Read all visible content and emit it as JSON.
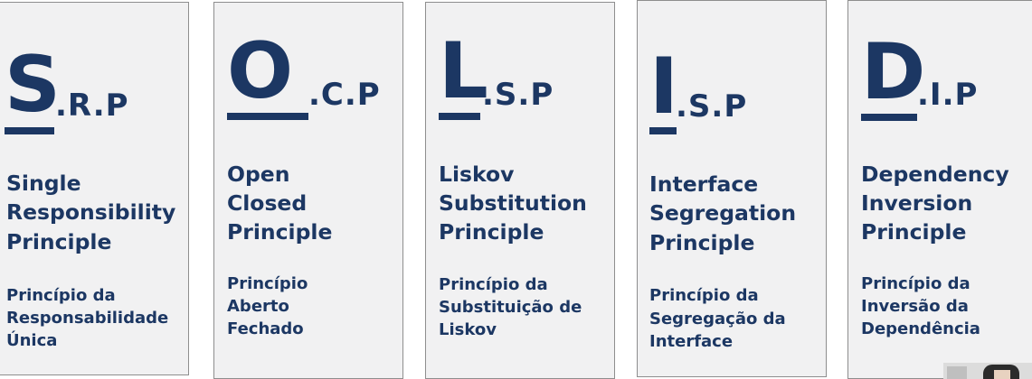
{
  "cards": [
    {
      "letter": "S",
      "rest": ".R.P",
      "name": [
        "Single",
        "Responsibility",
        "Principle"
      ],
      "pt": [
        "Princípio da",
        "Responsabilidade",
        "Única"
      ]
    },
    {
      "letter": "O",
      "rest": ".C.P",
      "name": [
        "Open",
        "Closed",
        "Principle"
      ],
      "pt": [
        "Princípio",
        "Aberto",
        "Fechado"
      ]
    },
    {
      "letter": "L",
      "rest": ".S.P",
      "name": [
        "Liskov",
        "Substitution",
        "Principle"
      ],
      "pt": [
        "Princípio da",
        "Substituição de",
        "Liskov"
      ]
    },
    {
      "letter": "I",
      "rest": ".S.P",
      "name": [
        "Interface",
        "Segregation",
        "Principle"
      ],
      "pt": [
        "Princípio da",
        "Segregação da",
        "Interface"
      ]
    },
    {
      "letter": "D",
      "rest": ".I.P",
      "name": [
        "Dependency",
        "Inversion",
        "Principle"
      ],
      "pt": [
        "Princípio da",
        "Inversão da",
        "Dependência"
      ]
    }
  ],
  "colors": {
    "text": "#1c3763",
    "card": "#f1f1f2",
    "border": "#8e8e8e"
  }
}
